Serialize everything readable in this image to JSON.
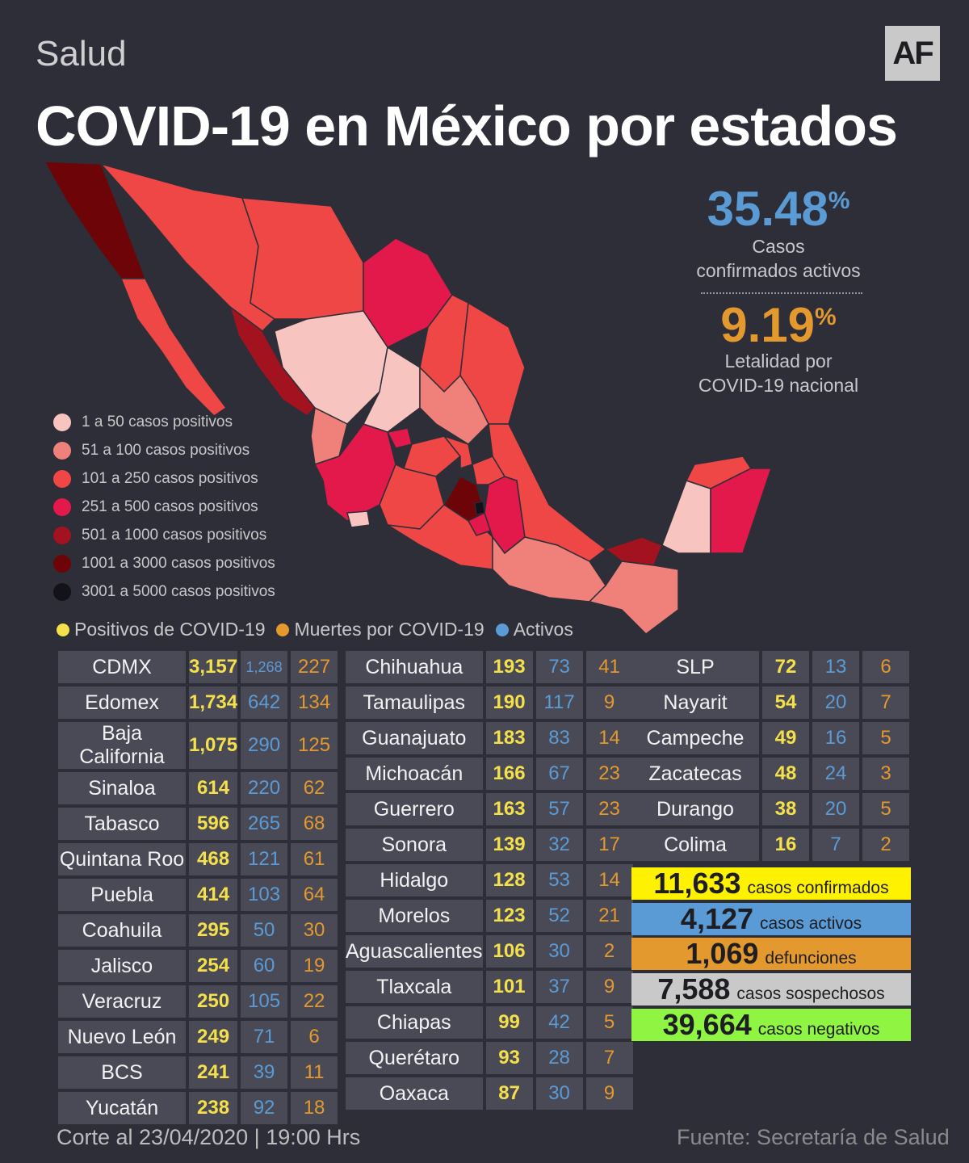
{
  "header": {
    "section": "Salud",
    "logo": "AF",
    "title": "COVID-19 en México por estados"
  },
  "stats": {
    "active_pct": "35.48",
    "active_label_1": "Casos",
    "active_label_2": "confirmados activos",
    "lethality_pct": "9.19",
    "lethality_label_1": "Letalidad por",
    "lethality_label_2": "COVID-19 nacional",
    "pct_sign": "%"
  },
  "legend": [
    {
      "label": "1 a 50 casos positivos",
      "color": "#f7c4c0"
    },
    {
      "label": "51 a 100 casos positivos",
      "color": "#f0817a"
    },
    {
      "label": "101 a 250 casos positivos",
      "color": "#ef4646"
    },
    {
      "label": "251 a 500 casos positivos",
      "color": "#e3194b"
    },
    {
      "label": "501 a 1000 casos positivos",
      "color": "#a3121f"
    },
    {
      "label": "1001 a 3000 casos positivos",
      "color": "#6d0408"
    },
    {
      "label": "3001 a 5000 casos positivos",
      "color": "#121218"
    }
  ],
  "key": [
    {
      "label": "Positivos de COVID-19",
      "color": "#f3e04a"
    },
    {
      "label": "Muertes por COVID-19",
      "color": "#e3992e"
    },
    {
      "label": "Activos",
      "color": "#5b9bd5"
    }
  ],
  "table1": [
    [
      "CDMX",
      "3,157",
      "1,268",
      "227"
    ],
    [
      "Edomex",
      "1,734",
      "642",
      "134"
    ],
    [
      "Baja California",
      "1,075",
      "290",
      "125"
    ],
    [
      "Sinaloa",
      "614",
      "220",
      "62"
    ],
    [
      "Tabasco",
      "596",
      "265",
      "68"
    ],
    [
      "Quintana Roo",
      "468",
      "121",
      "61"
    ],
    [
      "Puebla",
      "414",
      "103",
      "64"
    ],
    [
      "Coahuila",
      "295",
      "50",
      "30"
    ],
    [
      "Jalisco",
      "254",
      "60",
      "19"
    ],
    [
      "Veracruz",
      "250",
      "105",
      "22"
    ],
    [
      "Nuevo León",
      "249",
      "71",
      "6"
    ],
    [
      "BCS",
      "241",
      "39",
      "11"
    ],
    [
      "Yucatán",
      "238",
      "92",
      "18"
    ]
  ],
  "table2": [
    [
      "Chihuahua",
      "193",
      "73",
      "41"
    ],
    [
      "Tamaulipas",
      "190",
      "117",
      "9"
    ],
    [
      "Guanajuato",
      "183",
      "83",
      "14"
    ],
    [
      "Michoacán",
      "166",
      "67",
      "23"
    ],
    [
      "Guerrero",
      "163",
      "57",
      "23"
    ],
    [
      "Sonora",
      "139",
      "32",
      "17"
    ],
    [
      "Hidalgo",
      "128",
      "53",
      "14"
    ],
    [
      "Morelos",
      "123",
      "52",
      "21"
    ],
    [
      "Aguascalientes",
      "106",
      "30",
      "2"
    ],
    [
      "Tlaxcala",
      "101",
      "37",
      "9"
    ],
    [
      "Chiapas",
      "99",
      "42",
      "5"
    ],
    [
      "Querétaro",
      "93",
      "28",
      "7"
    ],
    [
      "Oaxaca",
      "87",
      "30",
      "9"
    ]
  ],
  "table3": [
    [
      "SLP",
      "72",
      "13",
      "6"
    ],
    [
      "Nayarit",
      "54",
      "20",
      "7"
    ],
    [
      "Campeche",
      "49",
      "16",
      "5"
    ],
    [
      "Zacatecas",
      "48",
      "24",
      "3"
    ],
    [
      "Durango",
      "38",
      "20",
      "5"
    ],
    [
      "Colima",
      "16",
      "7",
      "2"
    ]
  ],
  "summary": [
    {
      "value": "11,633",
      "label": "casos confirmados",
      "color": "#fff200"
    },
    {
      "value": "4,127",
      "label": "casos activos",
      "color": "#5b9bd5"
    },
    {
      "value": "1,069",
      "label": "defunciones",
      "color": "#e3992e"
    },
    {
      "value": "7,588",
      "label": "casos sospechosos",
      "color": "#c9c9c9"
    },
    {
      "value": "39,664",
      "label": "casos negativos",
      "color": "#8ff542"
    }
  ],
  "footer": {
    "cut": "Corte al 23/04/2020 | 19:00 Hrs",
    "source": "Fuente: Secretaría de Salud"
  }
}
